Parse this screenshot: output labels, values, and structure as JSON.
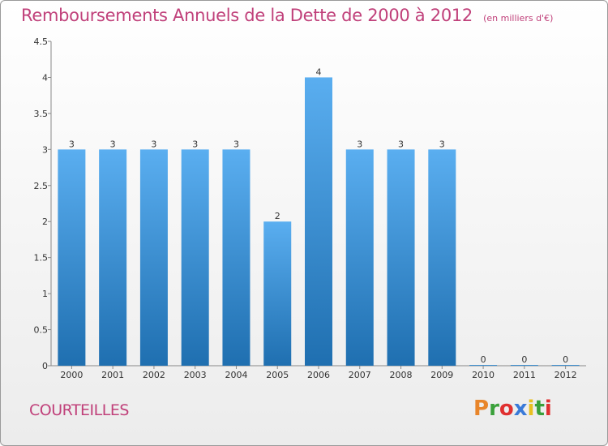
{
  "header": {
    "title": "Remboursements Annuels de la Dette de 2000 à 2012",
    "unit": "(en milliers d'€)"
  },
  "footer": {
    "commune": "COURTEILLES",
    "brand": "Proxiti"
  },
  "colors": {
    "accent": "#c0407a",
    "bar_top": "#5aaef0",
    "bar_bottom": "#1f6fb0",
    "brand_letters": [
      "#e8852a",
      "#3aa03a",
      "#e03030",
      "#3a7ad8",
      "#e8c020",
      "#3aa03a",
      "#e03030"
    ]
  },
  "chart_data": {
    "type": "bar",
    "title": "Remboursements Annuels de la Dette de 2000 à 2012",
    "xlabel": "",
    "ylabel": "",
    "categories": [
      "2000",
      "2001",
      "2002",
      "2003",
      "2004",
      "2005",
      "2006",
      "2007",
      "2008",
      "2009",
      "2010",
      "2011",
      "2012"
    ],
    "values": [
      3,
      3,
      3,
      3,
      3,
      2,
      4,
      3,
      3,
      3,
      0,
      0,
      0
    ],
    "data_labels": [
      "3",
      "3",
      "3",
      "3",
      "3",
      "2",
      "4",
      "3",
      "3",
      "3",
      "0",
      "0",
      "0"
    ],
    "ylim": [
      0,
      4.5
    ],
    "yticks": [
      0,
      0.5,
      1,
      1.5,
      2,
      2.5,
      3,
      3.5,
      4,
      4.5
    ],
    "ytick_labels": [
      "0",
      "0.5",
      "1",
      "1.5",
      "2",
      "2.5",
      "3",
      "3.5",
      "4",
      "4.5"
    ],
    "grid": false,
    "legend": "none"
  }
}
